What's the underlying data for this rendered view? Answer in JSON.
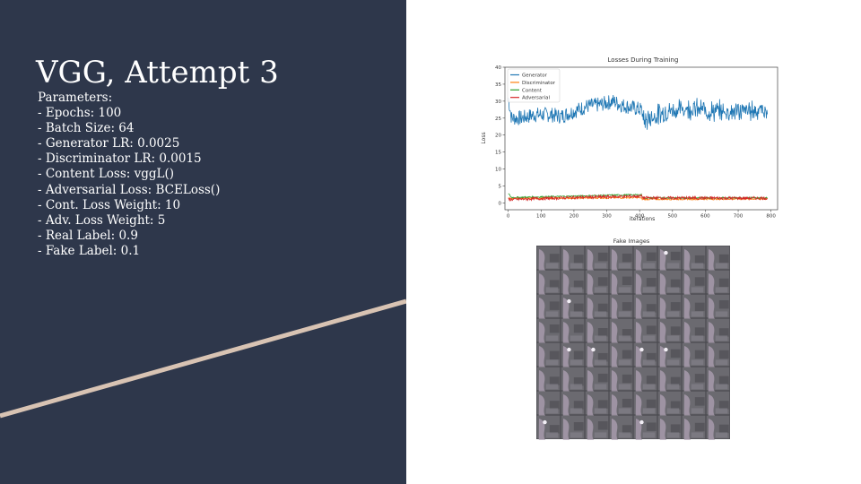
{
  "slide": {
    "title": "VGG, Attempt 3",
    "parameters_heading": "Parameters:",
    "parameters": [
      "- Epochs: 100",
      "- Batch Size: 64",
      "- Generator LR: 0.0025",
      "- Discriminator LR: 0.0015",
      "- Content Loss: vggL()",
      "- Adversarial Loss: BCELoss()",
      "- Cont. Loss Weight: 10",
      "- Adv. Loss Weight: 5",
      "- Real Label: 0.9",
      "- Fake Label: 0.1"
    ],
    "colors": {
      "panel": "#2e374b",
      "accent_line": "#d8c3b3",
      "text": "#ffffff"
    }
  },
  "chart_data": {
    "type": "line",
    "title": "Losses During Training",
    "xlabel": "iterations",
    "ylabel": "Loss",
    "xlim": [
      -10,
      820
    ],
    "ylim": [
      -2,
      40
    ],
    "xticks": [
      0,
      100,
      200,
      300,
      400,
      500,
      600,
      700,
      800
    ],
    "yticks": [
      0,
      5,
      10,
      15,
      20,
      25,
      30,
      35,
      40
    ],
    "grid": false,
    "legend": "top-left",
    "series": [
      {
        "name": "Generator",
        "color": "#1f77b4",
        "band": [
          [
            0,
            31
          ],
          [
            10,
            25
          ],
          [
            40,
            25
          ],
          [
            80,
            26
          ],
          [
            130,
            26
          ],
          [
            160,
            25.5
          ],
          [
            200,
            27
          ],
          [
            240,
            28.5
          ],
          [
            280,
            29
          ],
          [
            320,
            30
          ],
          [
            340,
            29
          ],
          [
            380,
            28
          ],
          [
            405,
            27.5
          ],
          [
            415,
            24
          ],
          [
            430,
            25
          ],
          [
            480,
            27
          ],
          [
            550,
            28
          ],
          [
            620,
            27
          ],
          [
            700,
            27
          ],
          [
            760,
            27.5
          ],
          [
            790,
            27
          ]
        ]
      },
      {
        "name": "Discriminator",
        "color": "#ff7f0e",
        "band": [
          [
            0,
            1.3
          ],
          [
            400,
            1.6
          ],
          [
            410,
            1.1
          ],
          [
            790,
            1.2
          ]
        ]
      },
      {
        "name": "Content",
        "color": "#2ca02c",
        "band": [
          [
            0,
            2.8
          ],
          [
            10,
            1.6
          ],
          [
            200,
            2.0
          ],
          [
            320,
            2.3
          ],
          [
            405,
            2.4
          ],
          [
            412,
            1.5
          ],
          [
            790,
            1.5
          ]
        ]
      },
      {
        "name": "Adversarial",
        "color": "#d62728",
        "band": [
          [
            0,
            1.0
          ],
          [
            200,
            1.6
          ],
          [
            405,
            2.0
          ],
          [
            412,
            1.5
          ],
          [
            790,
            1.4
          ]
        ]
      }
    ]
  },
  "fake_images": {
    "title": "Fake Images",
    "grid": [
      8,
      8
    ]
  }
}
